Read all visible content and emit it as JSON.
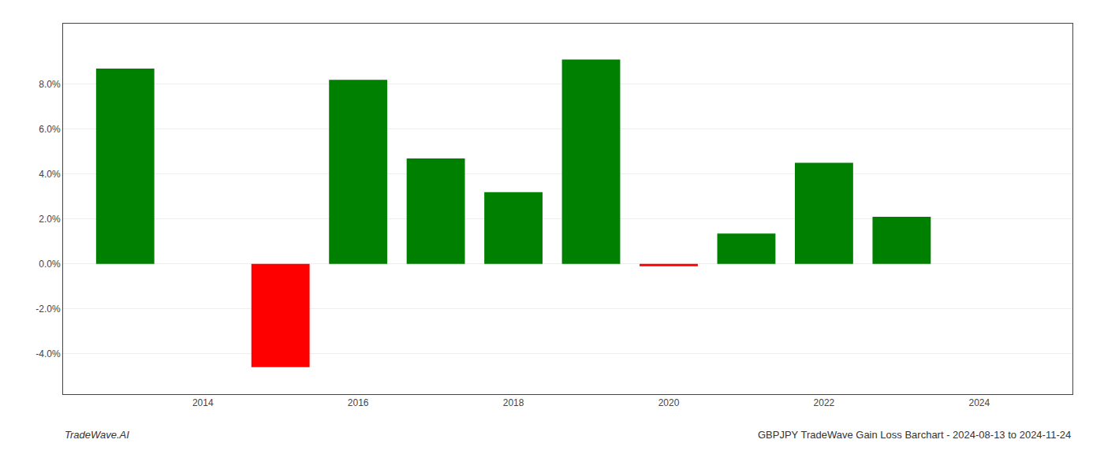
{
  "chart_data": {
    "type": "bar",
    "x": [
      2013,
      2015,
      2016,
      2017,
      2018,
      2019,
      2020,
      2021,
      2022,
      2023
    ],
    "values": [
      0.087,
      -0.046,
      0.082,
      0.047,
      0.032,
      0.091,
      -0.001,
      0.0135,
      0.045,
      0.021
    ],
    "colors": [
      "#008000",
      "#ff0000",
      "#008000",
      "#008000",
      "#008000",
      "#008000",
      "#ff0000",
      "#008000",
      "#008000",
      "#008000"
    ],
    "xlim": [
      2012.2,
      2025.2
    ],
    "xticks": [
      2014,
      2016,
      2018,
      2020,
      2022,
      2024
    ],
    "ylim": [
      -0.058,
      0.107
    ],
    "yticks": [
      {
        "value": -0.04,
        "label": "-4.0%"
      },
      {
        "value": -0.02,
        "label": "-2.0%"
      },
      {
        "value": 0.0,
        "label": "0.0%"
      },
      {
        "value": 0.02,
        "label": "2.0%"
      },
      {
        "value": 0.04,
        "label": "4.0%"
      },
      {
        "value": 0.06,
        "label": "6.0%"
      },
      {
        "value": 0.08,
        "label": "8.0%"
      }
    ],
    "grid": true,
    "annotations": [
      "TradeWave.AI",
      "GBPJPY TradeWave Gain Loss Barchart - 2024-08-13 to 2024-11-24"
    ]
  }
}
